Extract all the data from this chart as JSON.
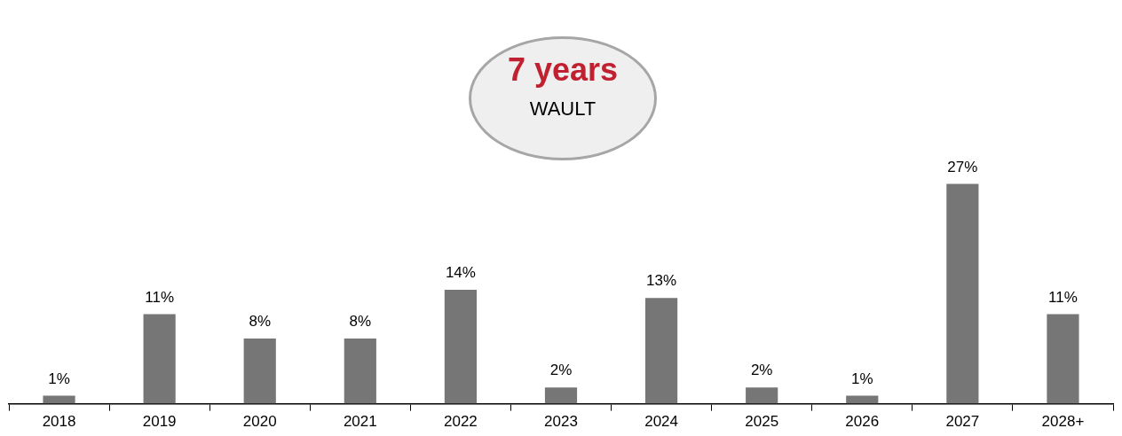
{
  "chart_data": {
    "type": "bar",
    "categories": [
      "2018",
      "2019",
      "2020",
      "2021",
      "2022",
      "2023",
      "2024",
      "2025",
      "2026",
      "2027",
      "2028+"
    ],
    "values": [
      1,
      11,
      8,
      8,
      14,
      2,
      13,
      2,
      1,
      27,
      11
    ],
    "value_labels": [
      "1%",
      "11%",
      "8%",
      "8%",
      "14%",
      "2%",
      "13%",
      "2%",
      "1%",
      "27%",
      "11%"
    ],
    "color": "#767676",
    "tick_labels": "x",
    "grid": false,
    "legend": false,
    "annotations": [
      "7 years",
      "WAULT"
    ]
  }
}
